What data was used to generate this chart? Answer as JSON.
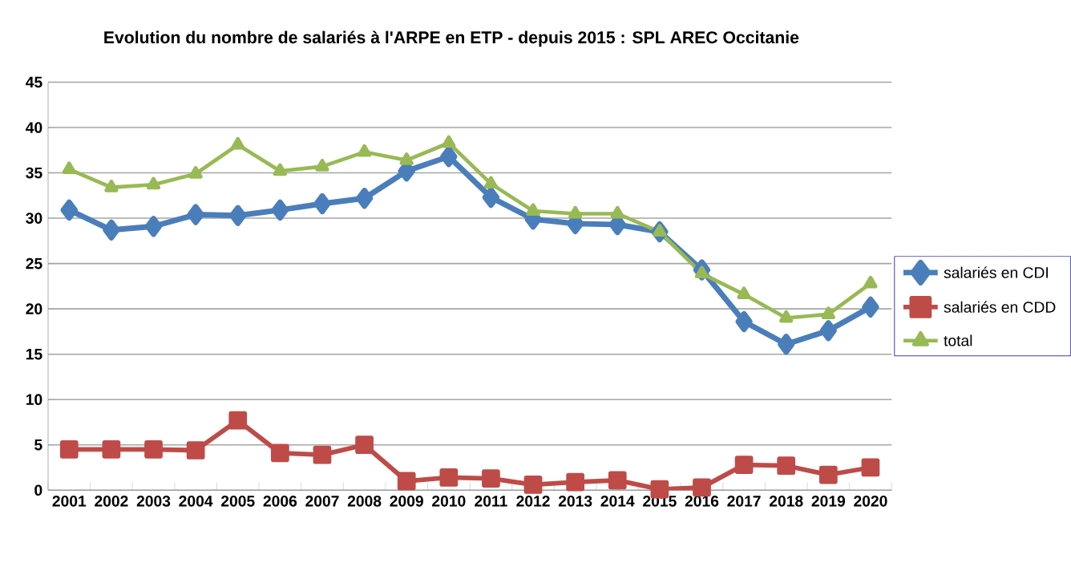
{
  "chart_data": {
    "type": "line",
    "title": "Evolution du nombre de salariés à l'ARPE en ETP -  depuis 2015 : SPL AREC Occitanie",
    "categories": [
      "2001",
      "2002",
      "2003",
      "2004",
      "2005",
      "2006",
      "2007",
      "2008",
      "2009",
      "2010",
      "2011",
      "2012",
      "2013",
      "2014",
      "2015",
      "2016",
      "2017",
      "2018",
      "2019",
      "2020"
    ],
    "series": [
      {
        "name": "salariés en CDI",
        "color": "#4a7ebb",
        "marker": "diamond",
        "values": [
          30.9,
          28.7,
          29.1,
          30.4,
          30.3,
          30.9,
          31.6,
          32.2,
          35.2,
          36.8,
          32.3,
          29.9,
          29.4,
          29.3,
          28.5,
          24.3,
          18.6,
          16.1,
          17.6,
          20.2
        ]
      },
      {
        "name": "salariés en CDD",
        "color": "#be4b48",
        "marker": "square",
        "values": [
          4.5,
          4.5,
          4.5,
          4.4,
          7.7,
          4.1,
          3.9,
          5.0,
          1.0,
          1.4,
          1.3,
          0.6,
          0.9,
          1.1,
          0.1,
          0.3,
          2.8,
          2.7,
          1.7,
          2.5
        ]
      },
      {
        "name": "total",
        "color": "#98b954",
        "marker": "triangle",
        "values": [
          35.4,
          33.4,
          33.7,
          34.9,
          38.1,
          35.2,
          35.7,
          37.3,
          36.4,
          38.3,
          33.8,
          30.8,
          30.5,
          30.5,
          28.5,
          23.9,
          21.6,
          19.0,
          19.4,
          22.8
        ]
      }
    ],
    "ylim": [
      0,
      45
    ],
    "yticks": [
      0,
      5,
      10,
      15,
      20,
      25,
      30,
      35,
      40,
      45
    ],
    "grid": "y",
    "legend": "right"
  }
}
